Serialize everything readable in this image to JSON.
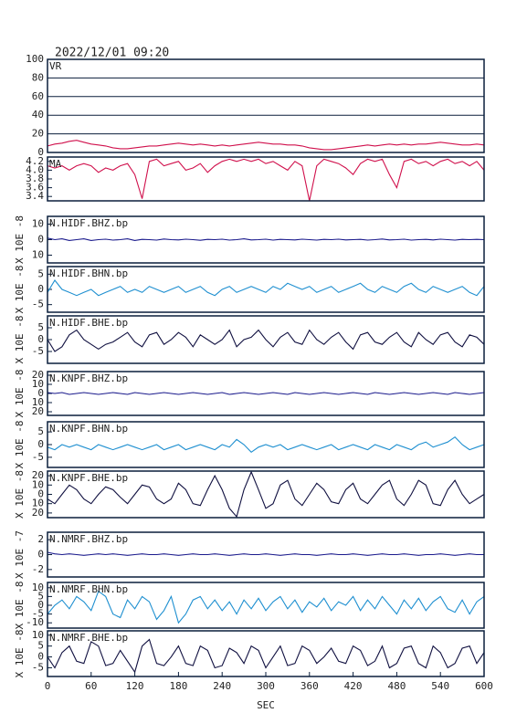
{
  "chart_data": {
    "type": "line",
    "title": "2022/12/01 09:20",
    "xlabel": "SEC",
    "xlim": [
      0,
      600
    ],
    "xticks": [
      0,
      60,
      120,
      180,
      240,
      300,
      360,
      420,
      480,
      540,
      600
    ],
    "x": [
      0,
      10,
      20,
      30,
      40,
      50,
      60,
      70,
      80,
      90,
      100,
      110,
      120,
      130,
      140,
      150,
      160,
      170,
      180,
      190,
      200,
      210,
      220,
      230,
      240,
      250,
      260,
      270,
      280,
      290,
      300,
      310,
      320,
      330,
      340,
      350,
      360,
      370,
      380,
      390,
      400,
      410,
      420,
      430,
      440,
      450,
      460,
      470,
      480,
      490,
      500,
      510,
      520,
      530,
      540,
      550,
      560,
      570,
      580,
      590,
      600
    ],
    "panels": [
      {
        "label": "VR",
        "color": "#d0104c",
        "grid": true,
        "ylim": [
          0,
          100
        ],
        "yticks": [
          0,
          20,
          40,
          60,
          80,
          100
        ],
        "values": [
          7,
          9,
          10,
          12,
          13,
          11,
          9,
          8,
          7,
          5,
          4,
          4,
          5,
          6,
          7,
          7,
          8,
          9,
          10,
          9,
          8,
          9,
          8,
          7,
          8,
          7,
          8,
          9,
          10,
          11,
          10,
          9,
          9,
          8,
          8,
          7,
          5,
          4,
          3,
          3,
          4,
          5,
          6,
          7,
          8,
          7,
          8,
          9,
          8,
          9,
          8,
          9,
          9,
          10,
          11,
          10,
          9,
          8,
          8,
          9,
          8
        ]
      },
      {
        "label": "MA",
        "color": "#d0104c",
        "grid": false,
        "ylim": [
          3.3,
          4.3
        ],
        "yticks": [
          3.4,
          3.6,
          3.8,
          {
            "value": 4,
            "label": "4.0"
          },
          4.2
        ],
        "values": [
          4.1,
          4.05,
          4.1,
          4.0,
          4.1,
          4.15,
          4.1,
          3.95,
          4.05,
          4.0,
          4.1,
          4.15,
          3.9,
          3.35,
          4.2,
          4.25,
          4.1,
          4.15,
          4.2,
          4.0,
          4.05,
          4.15,
          3.95,
          4.1,
          4.2,
          4.25,
          4.2,
          4.25,
          4.2,
          4.25,
          4.15,
          4.2,
          4.1,
          4.0,
          4.2,
          4.1,
          3.3,
          4.1,
          4.25,
          4.2,
          4.15,
          4.05,
          3.9,
          4.15,
          4.25,
          4.2,
          4.25,
          3.9,
          3.6,
          4.2,
          4.25,
          4.15,
          4.2,
          4.1,
          4.2,
          4.25,
          4.15,
          4.2,
          4.1,
          4.2,
          4.0
        ]
      },
      {
        "label": "N.HIDF.BHZ.bp",
        "ylabel": "X 10E -8",
        "color": "#1a1a8c",
        "grid": false,
        "ylim": [
          -15,
          15
        ],
        "yticks": [
          {
            "value": -10,
            "label": "10"
          },
          0,
          10
        ],
        "values": [
          1,
          0,
          0.5,
          -0.5,
          0,
          0.5,
          -0.5,
          0,
          0.3,
          -0.3,
          0,
          0.5,
          -0.5,
          0.2,
          0,
          -0.3,
          0.4,
          0,
          -0.2,
          0.3,
          0,
          -0.4,
          0.2,
          0,
          0.3,
          -0.3,
          0,
          0.5,
          -0.2,
          0,
          0.3,
          -0.3,
          0.2,
          0,
          -0.2,
          0.3,
          0,
          -0.3,
          0.2,
          0,
          0.3,
          -0.2,
          0,
          0.2,
          -0.3,
          0,
          0.4,
          -0.2,
          0,
          0.3,
          -0.3,
          0,
          0.2,
          -0.2,
          0.3,
          0,
          -0.3,
          0.2,
          0,
          0.2,
          0
        ]
      },
      {
        "label": "N.HIDF.BHN.bp",
        "ylabel": "X 10E -8",
        "color": "#1e8fd0",
        "grid": false,
        "ylim": [
          -7.5,
          7.5
        ],
        "yticks": [
          -5,
          0,
          5
        ],
        "values": [
          -1,
          3,
          0,
          -1,
          -2,
          -1,
          0,
          -2,
          -1,
          0,
          1,
          -1,
          0,
          -1,
          1,
          0,
          -1,
          0,
          1,
          -1,
          0,
          1,
          -1,
          -2,
          0,
          1,
          -1,
          0,
          1,
          0,
          -1,
          1,
          0,
          2,
          1,
          0,
          1,
          -1,
          0,
          1,
          -1,
          0,
          1,
          2,
          0,
          -1,
          1,
          0,
          -1,
          1,
          2,
          0,
          -1,
          1,
          0,
          -1,
          0,
          1,
          -1,
          -2,
          1
        ]
      },
      {
        "label": "N.HIDF.BHE.bp",
        "ylabel": "X 10E -8",
        "color": "#101040",
        "grid": false,
        "ylim": [
          -10,
          10
        ],
        "yticks": [
          -5,
          0,
          5
        ],
        "values": [
          0,
          -5,
          -3,
          2,
          4,
          0,
          -2,
          -4,
          -2,
          -1,
          1,
          3,
          -1,
          -3,
          2,
          3,
          -2,
          0,
          3,
          1,
          -3,
          2,
          0,
          -2,
          0,
          4,
          -3,
          0,
          1,
          4,
          0,
          -3,
          1,
          3,
          -1,
          -2,
          4,
          0,
          -2,
          1,
          3,
          -1,
          -4,
          2,
          3,
          -1,
          -2,
          1,
          3,
          -1,
          -3,
          3,
          0,
          -2,
          2,
          3,
          -1,
          -3,
          2,
          1,
          -2
        ]
      },
      {
        "label": "N.KNPF.BHZ.bp",
        "ylabel": "X 10E -8",
        "color": "#1a1a8c",
        "grid": false,
        "ylim": [
          -24,
          24
        ],
        "yticks": [
          {
            "value": -20,
            "label": "20"
          },
          {
            "value": -10,
            "label": "10"
          },
          0,
          10,
          20
        ],
        "values": [
          1,
          0,
          1,
          -1,
          0,
          1,
          0,
          -1,
          0,
          1,
          0,
          -1,
          1,
          0,
          -1,
          0,
          1,
          0,
          -1,
          0,
          1,
          0,
          -1,
          0,
          1,
          -1,
          0,
          1,
          0,
          -1,
          0,
          1,
          0,
          -1,
          1,
          0,
          -1,
          0,
          1,
          0,
          -1,
          0,
          1,
          0,
          -1,
          1,
          0,
          -1,
          0,
          1,
          0,
          -1,
          0,
          1,
          0,
          -1,
          1,
          0,
          -1,
          0,
          1
        ]
      },
      {
        "label": "N.KNPF.BHN.bp",
        "ylabel": "X 10E -8",
        "color": "#1e8fd0",
        "grid": false,
        "ylim": [
          -9,
          9
        ],
        "yticks": [
          -5,
          0,
          5
        ],
        "values": [
          -1,
          -2,
          0,
          -1,
          0,
          -1,
          -2,
          0,
          -1,
          -2,
          -1,
          0,
          -1,
          -2,
          -1,
          0,
          -2,
          -1,
          0,
          -2,
          -1,
          0,
          -1,
          -2,
          0,
          -1,
          2,
          0,
          -3,
          -1,
          0,
          -1,
          0,
          -2,
          -1,
          0,
          -1,
          -2,
          -1,
          0,
          -2,
          -1,
          0,
          -1,
          -2,
          0,
          -1,
          -2,
          0,
          -1,
          -2,
          0,
          1,
          -1,
          0,
          1,
          3,
          0,
          -2,
          -1,
          0
        ]
      },
      {
        "label": "N.KNPF.BHE.bp",
        "ylabel": "X 10E -8",
        "color": "#101040",
        "grid": false,
        "ylim": [
          -25,
          25
        ],
        "yticks": [
          {
            "value": -20,
            "label": "20"
          },
          {
            "value": -10,
            "label": "10"
          },
          0,
          10,
          20
        ],
        "values": [
          -5,
          -10,
          0,
          10,
          5,
          -5,
          -10,
          0,
          8,
          5,
          -3,
          -10,
          0,
          10,
          8,
          -5,
          -10,
          -5,
          12,
          5,
          -10,
          -12,
          5,
          20,
          5,
          -15,
          -24,
          5,
          24,
          5,
          -15,
          -10,
          10,
          15,
          -5,
          -12,
          0,
          12,
          5,
          -8,
          -10,
          5,
          12,
          -5,
          -10,
          0,
          10,
          15,
          -5,
          -12,
          0,
          15,
          10,
          -10,
          -12,
          5,
          15,
          0,
          -10,
          -5,
          0
        ]
      },
      {
        "label": "N.NMRF.BHZ.bp",
        "ylabel": "X 10E -7",
        "color": "#1a1a8c",
        "grid": false,
        "ylim": [
          -3,
          3
        ],
        "yticks": [
          -2,
          0,
          2
        ],
        "values": [
          0.3,
          0.1,
          0,
          0.1,
          0,
          -0.1,
          0,
          0.1,
          0,
          0.1,
          0,
          -0.1,
          0,
          0.1,
          0,
          0,
          0.1,
          0,
          -0.1,
          0,
          0.1,
          0,
          0,
          0.1,
          0,
          -0.1,
          0,
          0.1,
          0,
          0,
          0.1,
          0,
          -0.1,
          0,
          0.1,
          0,
          0,
          -0.1,
          0,
          0.1,
          0,
          0,
          0.1,
          0,
          -0.1,
          0,
          0.1,
          0,
          0,
          0.1,
          0,
          -0.1,
          0,
          0,
          0.1,
          0,
          -0.1,
          0,
          0.1,
          0,
          0
        ]
      },
      {
        "label": "N.NMRF.BHN.bp",
        "ylabel": "X 10E -8",
        "color": "#1e8fd0",
        "grid": false,
        "ylim": [
          -13,
          13
        ],
        "yticks": [
          -10,
          -5,
          0,
          5,
          10
        ],
        "values": [
          -5,
          0,
          3,
          -2,
          5,
          2,
          -3,
          8,
          5,
          -5,
          -7,
          3,
          -2,
          5,
          2,
          -8,
          -3,
          5,
          -10,
          -5,
          3,
          5,
          -2,
          3,
          -3,
          2,
          -5,
          3,
          -2,
          4,
          -3,
          2,
          5,
          -2,
          3,
          -4,
          2,
          -1,
          4,
          -3,
          2,
          0,
          5,
          -3,
          3,
          -2,
          5,
          0,
          -5,
          3,
          -2,
          4,
          -3,
          2,
          5,
          -2,
          -4,
          3,
          -5,
          2,
          5
        ]
      },
      {
        "label": "N.NMRF.BHE.bp",
        "ylabel": "X 10E -8",
        "color": "#101040",
        "grid": false,
        "ylim": [
          -9,
          12
        ],
        "yticks": [
          -5,
          0,
          5,
          10
        ],
        "values": [
          0,
          -5,
          2,
          5,
          -2,
          -3,
          7,
          5,
          -4,
          -3,
          3,
          -2,
          -7,
          5,
          8,
          -3,
          -4,
          0,
          5,
          -3,
          -4,
          5,
          3,
          -5,
          -4,
          4,
          2,
          -3,
          5,
          3,
          -5,
          0,
          5,
          -4,
          -3,
          5,
          3,
          -3,
          0,
          4,
          -2,
          -3,
          5,
          3,
          -4,
          -2,
          5,
          -5,
          -3,
          4,
          5,
          -3,
          -5,
          5,
          2,
          -5,
          -3,
          4,
          5,
          -3,
          2
        ]
      }
    ]
  }
}
